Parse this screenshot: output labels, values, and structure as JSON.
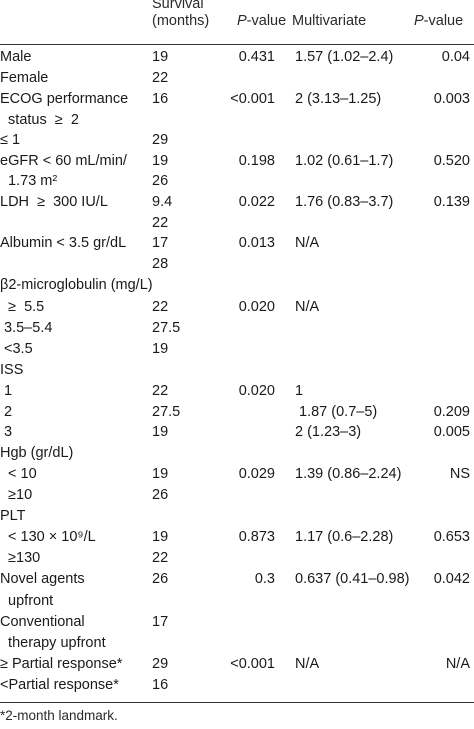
{
  "header": {
    "col_survival": "Survival\n(months)",
    "col_p1_italic": "P",
    "col_p1_rest": "-value",
    "col_multivariate": "Multivariate",
    "col_p2_italic": "P",
    "col_p2_rest": "-value"
  },
  "rows": [
    {
      "label": "Male",
      "survival": "19",
      "p": "0.431",
      "multi": "1.57 (1.02–2.4)",
      "p2": "0.04"
    },
    {
      "label": "Female",
      "survival": "22",
      "p": "",
      "multi": "",
      "p2": ""
    },
    {
      "label": "ECOG performance",
      "survival": "16",
      "p": "<0.001",
      "multi": "2 (3.13–1.25)",
      "p2": "0.003"
    },
    {
      "label": "  status  ≥  2",
      "survival": "",
      "p": "",
      "multi": "",
      "p2": ""
    },
    {
      "label": "≤ 1",
      "survival": "29",
      "p": "",
      "multi": "",
      "p2": ""
    },
    {
      "label": "eGFR < 60 mL/min/",
      "survival": "19",
      "p": "0.198",
      "multi": "1.02 (0.61–1.7)",
      "p2": "0.520"
    },
    {
      "label": "  1.73 m²",
      "survival": "26",
      "p": "",
      "multi": "",
      "p2": ""
    },
    {
      "label": "LDH  ≥  300 IU/L",
      "survival": "9.4",
      "p": "0.022",
      "multi": "1.76 (0.83–3.7)",
      "p2": "0.139"
    },
    {
      "label": "",
      "survival": "22",
      "p": "",
      "multi": "",
      "p2": ""
    },
    {
      "label": "Albumin < 3.5 gr/dL",
      "survival": "17",
      "p": "0.013",
      "multi": "N/A",
      "p2": ""
    },
    {
      "label": "",
      "survival": "28",
      "p": "",
      "multi": "",
      "p2": ""
    },
    {
      "label": "β2-microglobulin (mg/L)",
      "survival": "",
      "p": "",
      "multi": "",
      "p2": ""
    },
    {
      "label": "  ≥  5.5",
      "survival": "22",
      "p": "0.020",
      "multi": "N/A",
      "p2": ""
    },
    {
      "label": " 3.5–5.4",
      "survival": "27.5",
      "p": "",
      "multi": "",
      "p2": ""
    },
    {
      "label": " <3.5",
      "survival": "19",
      "p": "",
      "multi": "",
      "p2": ""
    },
    {
      "label": "ISS",
      "survival": "",
      "p": "",
      "multi": "",
      "p2": ""
    },
    {
      "label": " 1",
      "survival": "22",
      "p": "0.020",
      "multi": "1",
      "p2": ""
    },
    {
      "label": " 2",
      "survival": "27.5",
      "p": "",
      "multi": " 1.87 (0.7–5)",
      "p2": "0.209"
    },
    {
      "label": " 3",
      "survival": "19",
      "p": "",
      "multi": "2 (1.23–3)",
      "p2": "0.005"
    },
    {
      "label": "Hgb (gr/dL)",
      "survival": "",
      "p": "",
      "multi": "",
      "p2": ""
    },
    {
      "label": "  < 10",
      "survival": "19",
      "p": "0.029",
      "multi": "1.39 (0.86–2.24)",
      "p2": "NS"
    },
    {
      "label": "  ≥10",
      "survival": "26",
      "p": "",
      "multi": "",
      "p2": ""
    },
    {
      "label": "PLT",
      "survival": "",
      "p": "",
      "multi": "",
      "p2": ""
    },
    {
      "label": "  < 130 × 10⁹/L",
      "survival": "19",
      "p": "0.873",
      "multi": "1.17 (0.6–2.28)",
      "p2": "0.653"
    },
    {
      "label": "  ≥130",
      "survival": "22",
      "p": "",
      "multi": "",
      "p2": ""
    },
    {
      "label": "Novel agents",
      "survival": "26",
      "p": "0.3",
      "multi": "0.637 (0.41–0.98)",
      "p2": "0.042"
    },
    {
      "label": "  upfront",
      "survival": "",
      "p": "",
      "multi": "",
      "p2": ""
    },
    {
      "label": "Conventional",
      "survival": "17",
      "p": "",
      "multi": "",
      "p2": ""
    },
    {
      "label": "  therapy upfront",
      "survival": "",
      "p": "",
      "multi": "",
      "p2": ""
    },
    {
      "label": "≥ Partial response*",
      "survival": "29",
      "p": "<0.001",
      "multi": "N/A",
      "p2": "N/A"
    },
    {
      "label": "<Partial response*",
      "survival": "16",
      "p": "",
      "multi": "",
      "p2": ""
    }
  ],
  "footnote": "*2-month landmark."
}
